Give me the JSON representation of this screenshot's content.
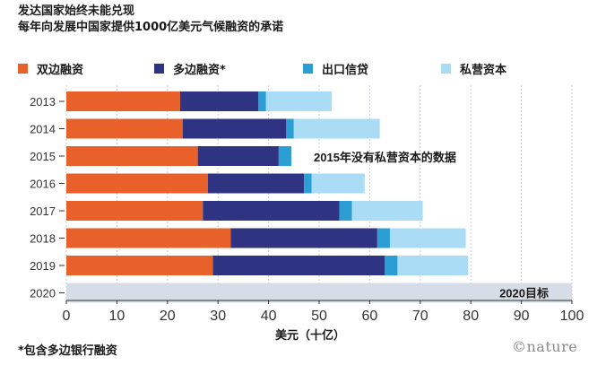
{
  "titles": {
    "line1": "发达国家始终未能兑现",
    "line2": "每年向发展中国家提供1000亿美元气候融资的承诺"
  },
  "footnote": "*包含多边银行融资",
  "brand": "©nature",
  "colors": {
    "bilateral": "#e8602a",
    "multilateral": "#2e3482",
    "export": "#2b9fd4",
    "private": "#aadcf6",
    "target": "#d7dde6"
  },
  "legend": [
    {
      "key": "bilateral",
      "label": "双边融资"
    },
    {
      "key": "multilateral",
      "label": "多边融资*"
    },
    {
      "key": "export",
      "label": "出口信贷"
    },
    {
      "key": "private",
      "label": "私营资本"
    }
  ],
  "chart_data": {
    "type": "bar",
    "orientation": "horizontal",
    "stacked": true,
    "categories": [
      "2013",
      "2014",
      "2015",
      "2016",
      "2017",
      "2018",
      "2019",
      "2020"
    ],
    "series": [
      {
        "key": "bilateral",
        "name": "双边融资",
        "values": [
          22.5,
          23,
          26,
          28,
          27,
          32.5,
          29,
          null
        ]
      },
      {
        "key": "multilateral",
        "name": "多边融资*",
        "values": [
          15.5,
          20.5,
          16,
          19,
          27,
          29,
          34,
          null
        ]
      },
      {
        "key": "export",
        "name": "出口信贷",
        "values": [
          1.5,
          1.5,
          2.5,
          1.5,
          2.5,
          2.5,
          2.5,
          null
        ]
      },
      {
        "key": "private",
        "name": "私营资本",
        "values": [
          13,
          17,
          null,
          10.5,
          14,
          15,
          14,
          null
        ]
      }
    ],
    "target": {
      "category": "2020",
      "value": 100,
      "label": "2020目标"
    },
    "annotations": [
      {
        "category": "2015",
        "text": "2015年没有私营资本的数据"
      }
    ],
    "xlabel": "美元（十亿）",
    "xlim": [
      0,
      100
    ],
    "xticks": [
      0,
      10,
      20,
      30,
      40,
      50,
      60,
      70,
      80,
      90,
      100
    ],
    "grid": true
  }
}
